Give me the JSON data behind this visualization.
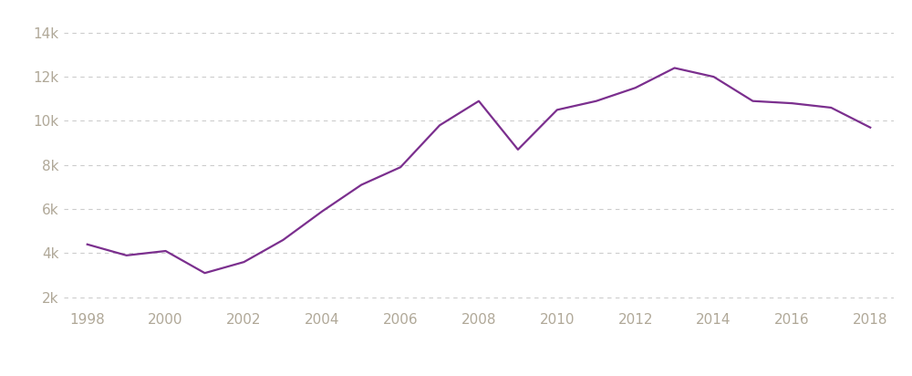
{
  "years": [
    1998,
    1999,
    2000,
    2001,
    2002,
    2003,
    2004,
    2005,
    2006,
    2007,
    2008,
    2009,
    2010,
    2011,
    2012,
    2013,
    2014,
    2015,
    2016,
    2017,
    2018
  ],
  "values": [
    4400,
    3900,
    4100,
    3100,
    3600,
    4600,
    5900,
    7100,
    7900,
    9800,
    10900,
    8700,
    10500,
    10900,
    11500,
    12400,
    12000,
    10900,
    10800,
    10600,
    9700
  ],
  "line_color": "#7b2f8e",
  "line_width": 1.6,
  "background_color": "#ffffff",
  "grid_color": "#cccccc",
  "ytick_labels": [
    "2k",
    "4k",
    "6k",
    "8k",
    "10k",
    "12k",
    "14k"
  ],
  "ytick_values": [
    2000,
    4000,
    6000,
    8000,
    10000,
    12000,
    14000
  ],
  "ylim": [
    1500,
    14800
  ],
  "xlim": [
    1997.4,
    2018.6
  ],
  "xtick_values": [
    1998,
    2000,
    2002,
    2004,
    2006,
    2008,
    2010,
    2012,
    2014,
    2016,
    2018
  ],
  "legend_color": "#7b2f8e",
  "tick_color": "#b0a898",
  "tick_fontsize": 11,
  "legend_fontsize": 10
}
